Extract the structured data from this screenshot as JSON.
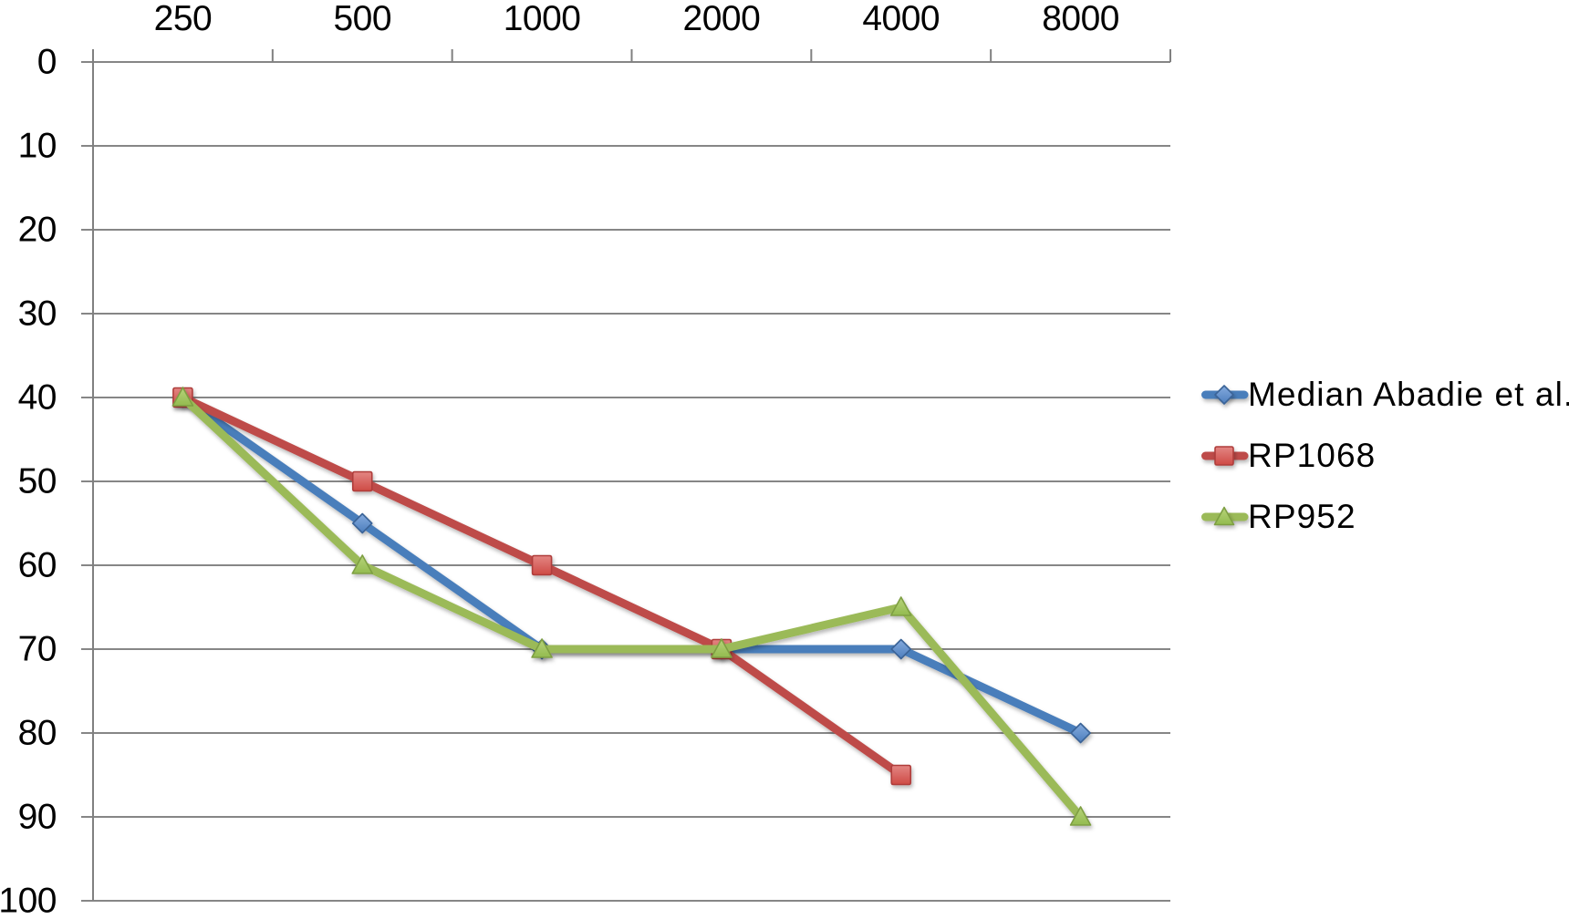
{
  "chart_data": {
    "type": "line",
    "title": "",
    "x_categories": [
      "250",
      "500",
      "1000",
      "2000",
      "4000",
      "8000"
    ],
    "y_tick_labels": [
      "0",
      "10",
      "20",
      "30",
      "40",
      "50",
      "60",
      "70",
      "80",
      "90",
      "100"
    ],
    "y_min": 0,
    "y_max": 100,
    "y_step": 10,
    "y_inverted": true,
    "x_axis_position": "top",
    "grid": true,
    "legend_position": "right",
    "axis_color": "#808080",
    "grid_color": "#868686",
    "label_color": "#000000",
    "series": [
      {
        "name": "Median Abadie et al.",
        "values": [
          40,
          55,
          70,
          70,
          70,
          80
        ],
        "color": "#4A7EBB",
        "marker": "diamond",
        "marker_fill_top": "#85ABDE",
        "marker_fill_bottom": "#4D7EBD",
        "marker_stroke": "#3A6497"
      },
      {
        "name": "RP1068",
        "values": [
          40,
          50,
          60,
          70,
          85,
          null
        ],
        "color": "#BE4B48",
        "marker": "square",
        "marker_fill_top": "#E38683",
        "marker_fill_bottom": "#CE4A45",
        "marker_stroke": "#AF3E3B"
      },
      {
        "name": "RP952",
        "values": [
          40,
          60,
          70,
          70,
          65,
          90
        ],
        "color": "#9BBA59",
        "marker": "triangle",
        "marker_fill_top": "#B7D37B",
        "marker_fill_bottom": "#93BB4F",
        "marker_stroke": "#7E9F43"
      }
    ],
    "legend": [
      "Median Abadie et al.",
      "RP1068",
      "RP952"
    ]
  }
}
